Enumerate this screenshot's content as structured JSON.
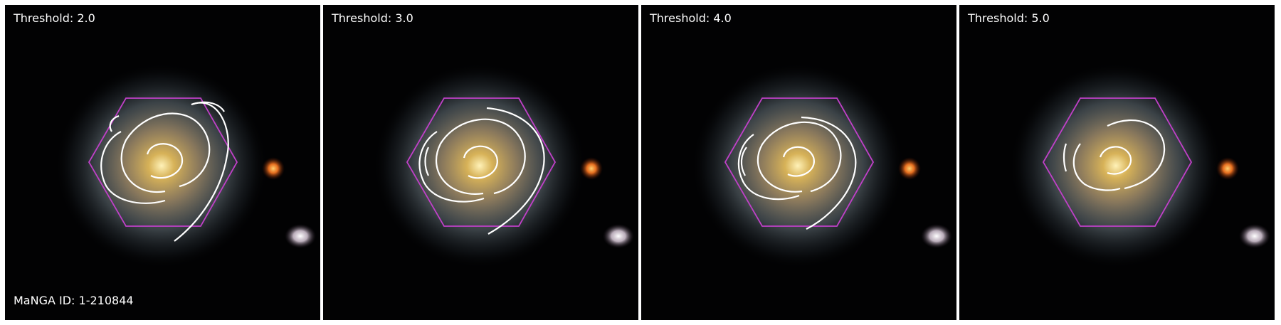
{
  "panels": [
    {
      "threshold_label": "Threshold: 2.0"
    },
    {
      "threshold_label": "Threshold: 3.0"
    },
    {
      "threshold_label": "Threshold: 4.0"
    },
    {
      "threshold_label": "Threshold: 5.0"
    }
  ],
  "manga_id_label": "MaNGA ID: 1-210844",
  "colors": {
    "background": "#020203",
    "contour": "#ffffff",
    "hexagon": "#c040c8",
    "galaxy_core": "#e8c060",
    "galaxy_halo": "#8a9aa0",
    "red_star": "#ff8a30",
    "white_source": "#f0e8f0"
  },
  "icons": [
    "galaxy-image",
    "spiral-contour",
    "ifu-hexagon"
  ]
}
